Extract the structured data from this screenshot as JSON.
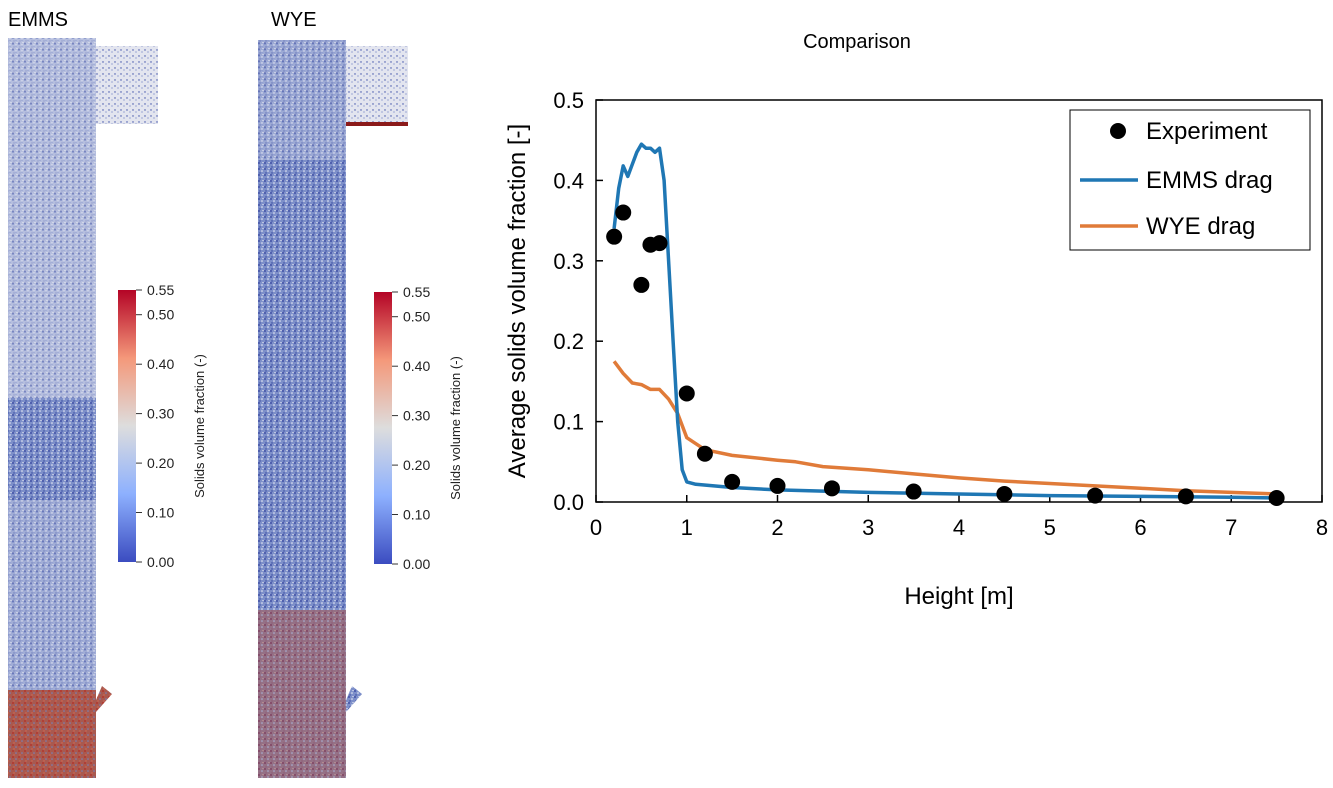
{
  "left_panel": {
    "simulations": [
      {
        "title": "EMMS"
      },
      {
        "title": "WYE"
      }
    ],
    "colorbar": {
      "label": "Solids volume fraction (-)",
      "ticks": [
        "0.55",
        "0.50",
        "0.40",
        "0.30",
        "0.20",
        "0.10",
        "0.00"
      ],
      "tick_values": [
        0.55,
        0.5,
        0.4,
        0.3,
        0.2,
        0.1,
        0.0
      ],
      "range": [
        0.0,
        0.55
      ],
      "colors": [
        "#3b4cc0",
        "#8db0fe",
        "#dddddd",
        "#f4987a",
        "#b40426"
      ]
    }
  },
  "chart_data": {
    "type": "line",
    "title": "Comparison",
    "xlabel": "Height [m]",
    "ylabel": "Average solids volume fraction [-]",
    "xlim": [
      0,
      8
    ],
    "ylim": [
      0,
      0.5
    ],
    "xticks": [
      "0",
      "1",
      "2",
      "3",
      "4",
      "5",
      "6",
      "7",
      "8"
    ],
    "yticks": [
      "0.0",
      "0.1",
      "0.2",
      "0.3",
      "0.4",
      "0.5"
    ],
    "grid": false,
    "legend_position": "top-right",
    "series": [
      {
        "name": "Experiment",
        "kind": "scatter",
        "color": "#000000",
        "x": [
          0.2,
          0.3,
          0.5,
          0.6,
          0.7,
          1.0,
          1.2,
          1.5,
          2.0,
          2.6,
          3.5,
          4.5,
          5.5,
          6.5,
          7.5
        ],
        "y": [
          0.33,
          0.36,
          0.27,
          0.32,
          0.322,
          0.135,
          0.06,
          0.025,
          0.02,
          0.017,
          0.013,
          0.01,
          0.008,
          0.007,
          0.005
        ]
      },
      {
        "name": "EMMS drag",
        "kind": "line",
        "color": "#1f77b4",
        "x": [
          0.2,
          0.25,
          0.3,
          0.35,
          0.4,
          0.45,
          0.5,
          0.55,
          0.6,
          0.65,
          0.7,
          0.75,
          0.8,
          0.85,
          0.9,
          0.95,
          1.0,
          1.1,
          1.5,
          2.0,
          3.0,
          4.0,
          5.0,
          6.0,
          7.0,
          7.5
        ],
        "y": [
          0.34,
          0.39,
          0.418,
          0.405,
          0.42,
          0.435,
          0.445,
          0.44,
          0.44,
          0.435,
          0.44,
          0.4,
          0.3,
          0.2,
          0.1,
          0.04,
          0.025,
          0.022,
          0.018,
          0.015,
          0.012,
          0.01,
          0.008,
          0.007,
          0.006,
          0.005
        ]
      },
      {
        "name": "WYE drag",
        "kind": "line",
        "color": "#e07b39",
        "x": [
          0.2,
          0.3,
          0.4,
          0.5,
          0.6,
          0.7,
          0.8,
          0.9,
          1.0,
          1.2,
          1.5,
          2.0,
          2.2,
          2.5,
          3.0,
          3.5,
          4.0,
          4.5,
          5.0,
          5.5,
          6.0,
          6.5,
          7.0,
          7.5
        ],
        "y": [
          0.175,
          0.16,
          0.148,
          0.146,
          0.14,
          0.14,
          0.128,
          0.11,
          0.08,
          0.065,
          0.058,
          0.052,
          0.05,
          0.044,
          0.04,
          0.035,
          0.03,
          0.026,
          0.023,
          0.02,
          0.017,
          0.014,
          0.012,
          0.01
        ]
      }
    ]
  }
}
